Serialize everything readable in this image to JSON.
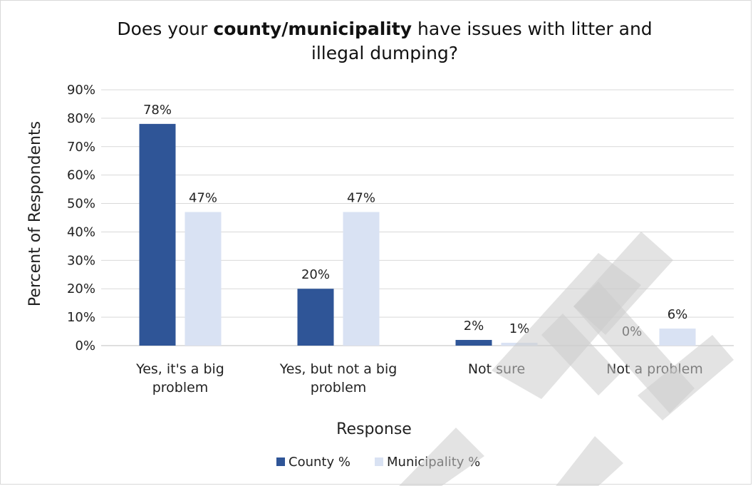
{
  "chart_data": {
    "type": "bar",
    "title_parts": [
      "Does your ",
      "county/municipality",
      " have issues with litter and illegal dumping?"
    ],
    "xlabel": "Response",
    "ylabel": "Percent of Respondents",
    "ylim": [
      0,
      90
    ],
    "yticks": [
      "0%",
      "10%",
      "20%",
      "30%",
      "40%",
      "50%",
      "60%",
      "70%",
      "80%",
      "90%"
    ],
    "categories": [
      [
        "Yes, it's a big",
        "problem"
      ],
      [
        "Yes, but not a big",
        "problem"
      ],
      [
        "Not sure"
      ],
      [
        "Not a problem"
      ]
    ],
    "series": [
      {
        "name": "County %",
        "color": "#2f5597",
        "values": [
          78,
          20,
          2,
          0
        ],
        "labels": [
          "78%",
          "20%",
          "2%",
          "0%"
        ]
      },
      {
        "name": "Municipality %",
        "color": "#d9e2f3",
        "values": [
          47,
          47,
          1,
          6
        ],
        "labels": [
          "47%",
          "47%",
          "1%",
          "6%"
        ]
      }
    ],
    "grid": true,
    "legend_position": "bottom"
  },
  "watermark": {
    "text": "DRAFT",
    "color": "#cccccc"
  }
}
